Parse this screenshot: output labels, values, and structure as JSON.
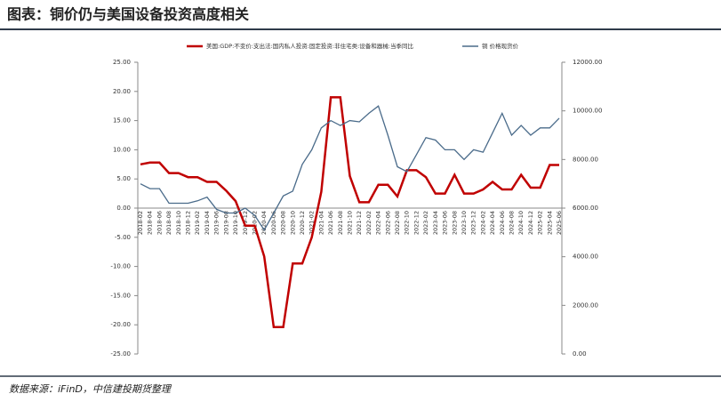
{
  "chart_data": {
    "type": "line",
    "title": "图表：铜价仍与美国设备投资高度相关",
    "source": "数据来源：iFinD，中信建投期货整理",
    "categories": [
      "2018-02",
      "2018-04",
      "2018-06",
      "2018-08",
      "2018-10",
      "2018-12",
      "2019-02",
      "2019-04",
      "2019-06",
      "2019-08",
      "2019-10",
      "2019-12",
      "2020-02",
      "2020-04",
      "2020-06",
      "2020-08",
      "2020-10",
      "2020-12",
      "2021-02",
      "2021-04",
      "2021-06",
      "2021-08",
      "2021-10",
      "2021-12",
      "2022-02",
      "2022-04",
      "2022-06",
      "2022-08",
      "2022-10",
      "2022-12",
      "2023-02",
      "2023-04",
      "2023-06",
      "2023-08",
      "2023-10",
      "2023-12",
      "2024-02",
      "2024-04",
      "2024-06",
      "2024-08",
      "2024-10",
      "2024-12",
      "2025-02",
      "2025-04",
      "2025-06"
    ],
    "series": [
      {
        "name": "美国:GDP:不变价:支出法:国内私人投资:固定投资:非住宅类:设备和器械:当季同比",
        "color": "#c00000",
        "axis": "y",
        "values": [
          7.5,
          7.8,
          7.8,
          6.0,
          6.0,
          5.3,
          5.3,
          4.5,
          4.5,
          3.0,
          1.2,
          -3.0,
          -3.0,
          -8.3,
          -20.4,
          -20.4,
          -9.5,
          -9.5,
          -5.0,
          2.8,
          19.0,
          19.0,
          5.5,
          1.0,
          1.0,
          4.0,
          4.0,
          2.0,
          6.5,
          6.5,
          5.3,
          2.5,
          2.5,
          5.7,
          2.5,
          2.5,
          3.2,
          4.5,
          3.2,
          3.2,
          5.7,
          3.5,
          3.5,
          7.4,
          7.4
        ]
      },
      {
        "name": "铜 价格现货价",
        "color": "#4a6b8a",
        "axis": "y2",
        "values": [
          7000,
          6800,
          6800,
          6200,
          6200,
          6200,
          6300,
          6450,
          5950,
          5800,
          5800,
          6000,
          5700,
          5100,
          5800,
          6500,
          6700,
          7800,
          8400,
          9300,
          9600,
          9400,
          9600,
          9550,
          9900,
          10200,
          9000,
          7700,
          7500,
          8200,
          8900,
          8800,
          8400,
          8400,
          8000,
          8400,
          8300,
          9100,
          9900,
          9000,
          9400,
          9000,
          9300,
          9300,
          9700
        ]
      }
    ],
    "ylim": [
      -25,
      25
    ],
    "yticks": [
      {
        "value": -25,
        "label": "-25.00"
      },
      {
        "value": -20,
        "label": "-20.00"
      },
      {
        "value": -15,
        "label": "-15.00"
      },
      {
        "value": -10,
        "label": "-10.00"
      },
      {
        "value": -5,
        "label": "-5.00"
      },
      {
        "value": 0,
        "label": "0.00"
      },
      {
        "value": 5,
        "label": "5.00"
      },
      {
        "value": 10,
        "label": "10.00"
      },
      {
        "value": 15,
        "label": "15.00"
      },
      {
        "value": 20,
        "label": "20.00"
      },
      {
        "value": 25,
        "label": "25.00"
      }
    ],
    "y2lim": [
      0,
      12000
    ],
    "y2ticks": [
      {
        "value": 0,
        "label": "0.00"
      },
      {
        "value": 2000,
        "label": "2000.00"
      },
      {
        "value": 4000,
        "label": "4000.00"
      },
      {
        "value": 6000,
        "label": "6000.00"
      },
      {
        "value": 8000,
        "label": "8000.00"
      },
      {
        "value": 10000,
        "label": "10000.00"
      },
      {
        "value": 12000,
        "label": "12000.00"
      }
    ],
    "legend": "top"
  }
}
